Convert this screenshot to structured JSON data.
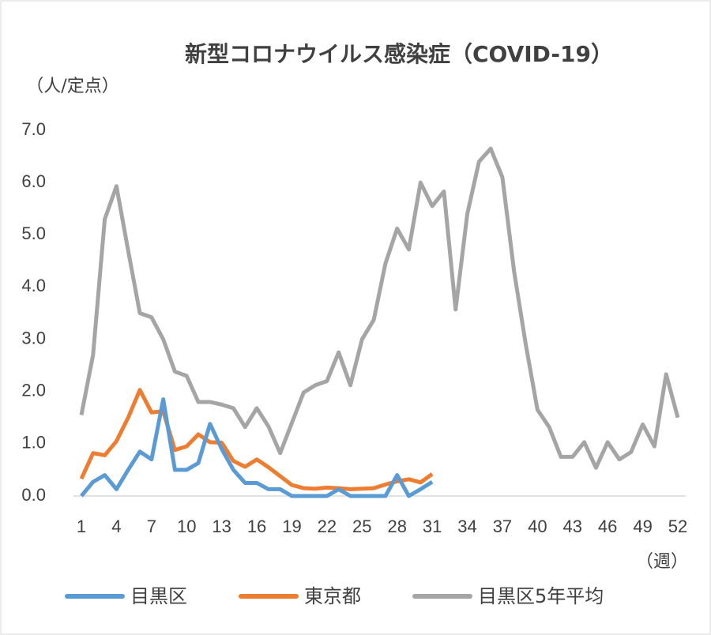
{
  "chart_data": {
    "type": "line",
    "title": "新型コロナウイルス感染症（COVID-19）",
    "y_label": "（人/定点）",
    "x_label": "（週）",
    "x": [
      1,
      2,
      3,
      4,
      5,
      6,
      7,
      8,
      9,
      10,
      11,
      12,
      13,
      14,
      15,
      16,
      17,
      18,
      19,
      20,
      21,
      22,
      23,
      24,
      25,
      26,
      27,
      28,
      29,
      30,
      31,
      32,
      33,
      34,
      35,
      36,
      37,
      38,
      39,
      40,
      41,
      42,
      43,
      44,
      45,
      46,
      47,
      48,
      49,
      50,
      51,
      52
    ],
    "xlim": [
      1,
      52
    ],
    "xticks": [
      1,
      4,
      7,
      10,
      13,
      16,
      19,
      22,
      25,
      28,
      31,
      34,
      37,
      40,
      43,
      46,
      49,
      52
    ],
    "ylim": [
      0,
      7
    ],
    "yticks": [
      {
        "value": 0,
        "label": "0.0"
      },
      {
        "value": 1,
        "label": "1.0"
      },
      {
        "value": 2,
        "label": "2.0"
      },
      {
        "value": 3,
        "label": "3.0"
      },
      {
        "value": 4,
        "label": "4.0"
      },
      {
        "value": 5,
        "label": "5.0"
      },
      {
        "value": 6,
        "label": "6.0"
      },
      {
        "value": 7,
        "label": "7.0"
      }
    ],
    "grid": false,
    "legend": "bottom",
    "series": [
      {
        "name": "目黒区",
        "color": "#5b9bd5",
        "values": [
          0,
          0.27,
          0.4,
          0.13,
          0.5,
          0.85,
          0.7,
          1.85,
          0.5,
          0.5,
          0.63,
          1.38,
          0.9,
          0.5,
          0.25,
          0.25,
          0.13,
          0.13,
          0,
          0,
          0,
          0,
          0.13,
          0,
          0,
          0,
          0,
          0.4,
          0,
          0.13,
          0.27,
          null,
          null,
          null,
          null,
          null,
          null,
          null,
          null,
          null,
          null,
          null,
          null,
          null,
          null,
          null,
          null,
          null,
          null,
          null,
          null,
          null
        ]
      },
      {
        "name": "東京都",
        "color": "#ed7d31",
        "values": [
          0.33,
          0.82,
          0.78,
          1.05,
          1.5,
          2.03,
          1.6,
          1.62,
          0.88,
          0.95,
          1.18,
          1.03,
          1.02,
          0.67,
          0.56,
          0.7,
          0.55,
          0.38,
          0.21,
          0.15,
          0.14,
          0.16,
          0.15,
          0.13,
          0.14,
          0.15,
          0.22,
          0.28,
          0.32,
          0.26,
          0.42,
          null,
          null,
          null,
          null,
          null,
          null,
          null,
          null,
          null,
          null,
          null,
          null,
          null,
          null,
          null,
          null,
          null,
          null,
          null,
          null,
          null
        ]
      },
      {
        "name": "目黒区5年平均",
        "color": "#a5a5a5",
        "values": [
          1.55,
          2.7,
          5.3,
          5.93,
          4.7,
          3.5,
          3.42,
          3.0,
          2.38,
          2.3,
          1.8,
          1.8,
          1.75,
          1.68,
          1.32,
          1.68,
          1.33,
          0.82,
          1.4,
          1.98,
          2.12,
          2.2,
          2.75,
          2.12,
          3.0,
          3.37,
          4.45,
          5.12,
          4.72,
          6.0,
          5.55,
          5.83,
          3.57,
          5.4,
          6.4,
          6.65,
          6.1,
          4.3,
          2.9,
          1.65,
          1.32,
          0.75,
          0.75,
          1.03,
          0.54,
          1.03,
          0.7,
          0.84,
          1.37,
          0.95,
          2.33,
          1.5
        ]
      }
    ]
  }
}
